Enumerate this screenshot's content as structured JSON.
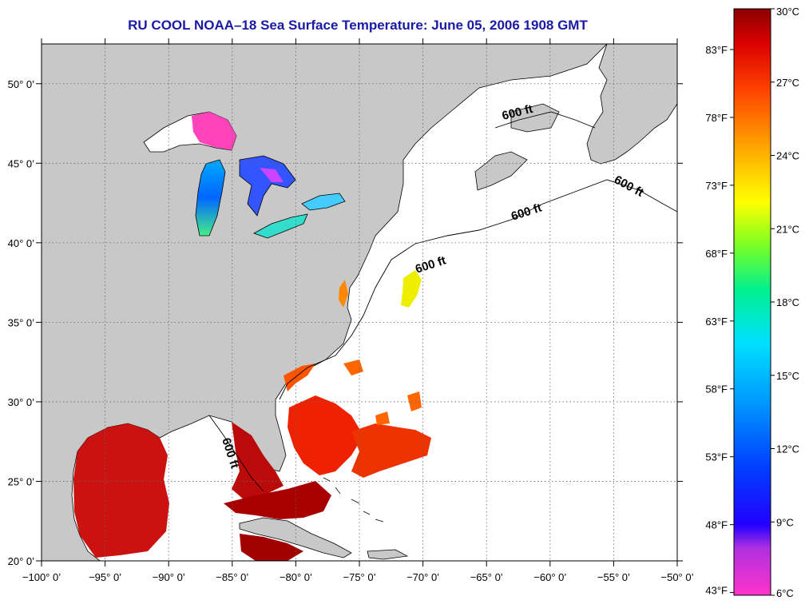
{
  "title": "RU COOL  NOAA–18  Sea Surface Temperature:  June 05, 2006 1908 GMT",
  "map": {
    "lon_range": [
      -100,
      -50
    ],
    "lat_range": [
      20,
      52.5
    ],
    "x_tick_labels": [
      "−100° 0’",
      "−95° 0’",
      "−90° 0’",
      "−85° 0’",
      "−80° 0’",
      "−75° 0’",
      "−70° 0’",
      "−65° 0’",
      "−60° 0’",
      "−55° 0’",
      "−50° 0’"
    ],
    "x_tick_values": [
      -100,
      -95,
      -90,
      -85,
      -80,
      -75,
      -70,
      -65,
      -60,
      -55,
      -50
    ],
    "y_tick_labels": [
      "20° 0’",
      "25° 0’",
      "30° 0’",
      "35° 0’",
      "40° 0’",
      "45° 0’",
      "50° 0’"
    ],
    "y_tick_values": [
      20,
      25,
      30,
      35,
      40,
      45,
      50
    ],
    "isobath_labels": [
      "600 ft",
      "600 ft",
      "600 ft",
      "600 ft",
      "600 ft"
    ],
    "grid": "dotted",
    "land_color": "#c8c8c8",
    "no_data_color": "#ffffff"
  },
  "colorbar": {
    "placement": "right",
    "celsius_labels": [
      "30°C",
      "27°C",
      "24°C",
      "21°C",
      "18°C",
      "15°C",
      "12°C",
      "9°C",
      "6°C"
    ],
    "celsius_values": [
      30,
      27,
      24,
      21,
      18,
      15,
      12,
      9,
      6
    ],
    "fahrenheit_labels": [
      "83°F",
      "78°F",
      "73°F",
      "68°F",
      "63°F",
      "58°F",
      "53°F",
      "48°F",
      "43°F"
    ],
    "fahrenheit_values": [
      83,
      78,
      73,
      68,
      63,
      58,
      53,
      48,
      43
    ],
    "colors_cold_to_warm": [
      "#ff33cc",
      "#8a2bd6",
      "#0000ff",
      "#0070ff",
      "#00d4ff",
      "#00e8a0",
      "#66ff33",
      "#ffff00",
      "#ffaa00",
      "#ff5500",
      "#ee0000",
      "#9a0000"
    ]
  }
}
